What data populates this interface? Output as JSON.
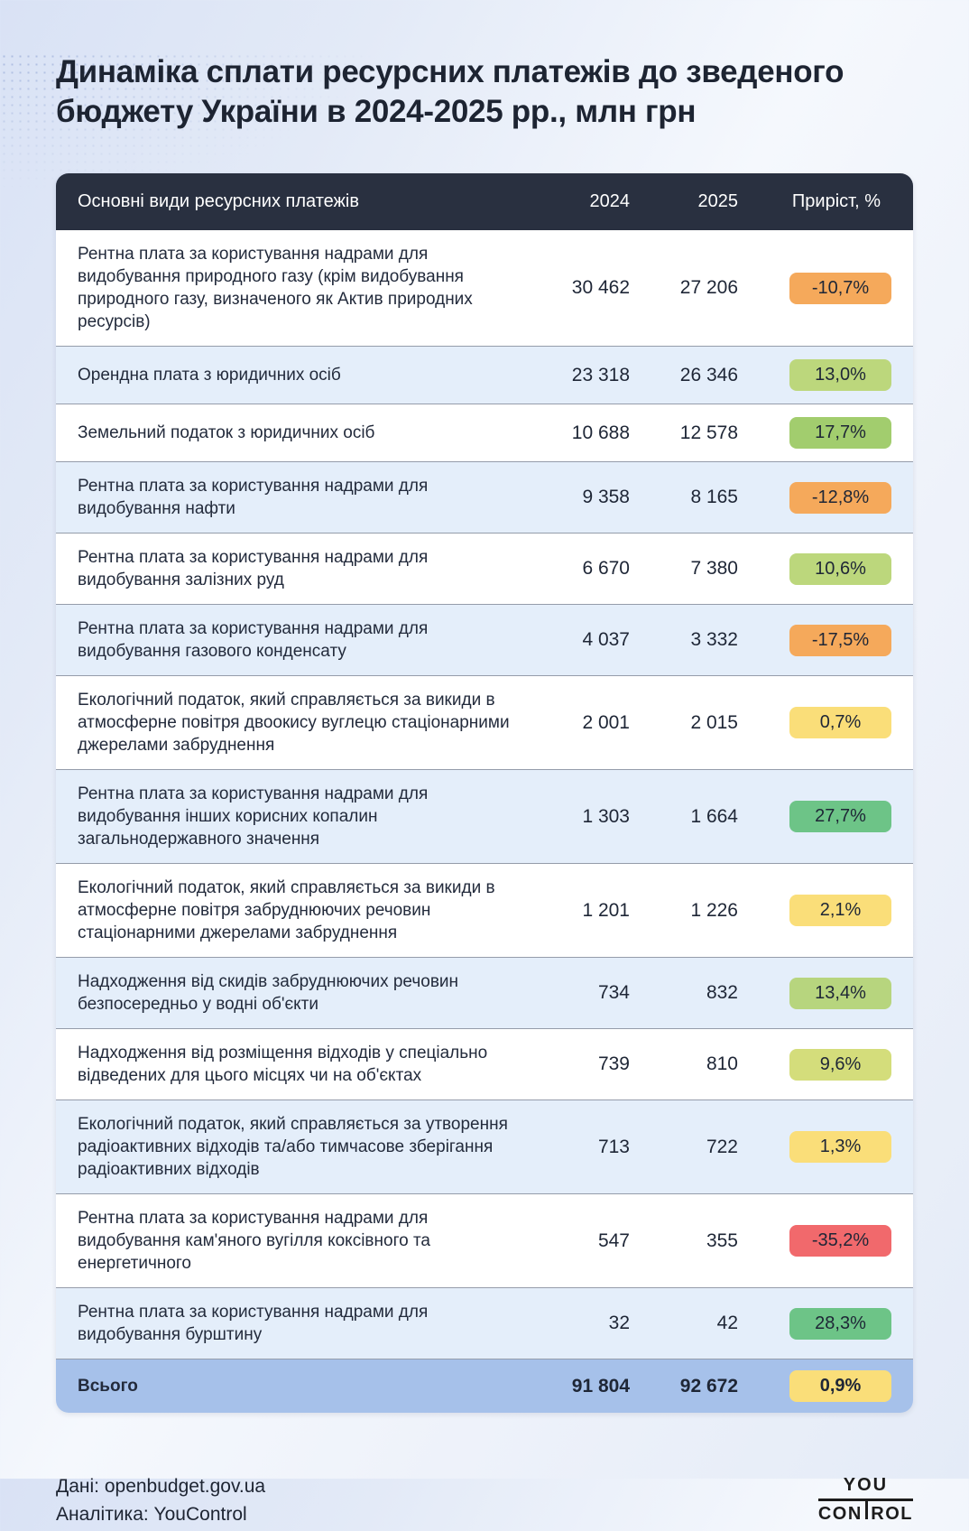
{
  "header": {
    "title": "Динаміка сплати ресурсних платежів до зведеного бюджету України в 2024-2025 рр., млн грн"
  },
  "table": {
    "columns": {
      "label": "Основні види ресурсних платежів",
      "y2024": "2024",
      "y2025": "2025",
      "growth": "Приріст, %"
    },
    "rows": [
      {
        "label": "Рентна плата за користування надрами для видобування природного газу (крім видобування природного газу, визначеного як Актив природних ресурсів)",
        "v2024": "30 462",
        "v2025": "27 206",
        "growth": "-10,7%",
        "badge_color": "#F5A95B"
      },
      {
        "label": "Орендна плата з юридичних осіб",
        "v2024": "23 318",
        "v2025": "26 346",
        "growth": "13,0%",
        "badge_color": "#BCD77C"
      },
      {
        "label": "Земельний податок з юридичних осіб",
        "v2024": "10 688",
        "v2025": "12 578",
        "growth": "17,7%",
        "badge_color": "#A2CD6E"
      },
      {
        "label": "Рентна плата за користування надрами для видобування нафти",
        "v2024": "9 358",
        "v2025": "8 165",
        "growth": "-12,8%",
        "badge_color": "#F5A95B"
      },
      {
        "label": "Рентна плата за користування надрами для видобування залізних руд",
        "v2024": "6 670",
        "v2025": "7 380",
        "growth": "10,6%",
        "badge_color": "#BCD77C"
      },
      {
        "label": "Рентна плата за користування надрами для видобування газового конденсату",
        "v2024": "4 037",
        "v2025": "3 332",
        "growth": "-17,5%",
        "badge_color": "#F5A95B"
      },
      {
        "label": "Екологічний податок, який справляється за викиди в атмосферне повітря двоокису вуглецю стаціонарними джерелами забруднення",
        "v2024": "2 001",
        "v2025": "2 015",
        "growth": "0,7%",
        "badge_color": "#FADE79"
      },
      {
        "label": "Рентна плата за користування надрами для видобування інших корисних копалин загальнодержавного значення",
        "v2024": "1 303",
        "v2025": "1 664",
        "growth": "27,7%",
        "badge_color": "#6DC487"
      },
      {
        "label": "Екологічний податок, який справляється за викиди в атмосферне повітря забруднюючих речовин стаціонарними джерелами забруднення",
        "v2024": "1 201",
        "v2025": "1 226",
        "growth": "2,1%",
        "badge_color": "#FADE79"
      },
      {
        "label": "Надходження від скидів забруднюючих речовин безпосередньо у водні об'єкти",
        "v2024": "734",
        "v2025": "832",
        "growth": "13,4%",
        "badge_color": "#B7D57E"
      },
      {
        "label": "Надходження від розміщення відходів у спеціально відведених для цього місцях чи на об'єктах",
        "v2024": "739",
        "v2025": "810",
        "growth": "9,6%",
        "badge_color": "#D4DD7B"
      },
      {
        "label": "Екологічний податок, який справляється за утворення радіоактивних відходів та/або тимчасове зберігання радіоактивних відходів",
        "v2024": "713",
        "v2025": "722",
        "growth": "1,3%",
        "badge_color": "#FADE79"
      },
      {
        "label": "Рентна плата за користування надрами для видобування кам'яного вугілля коксівного та енергетичного",
        "v2024": "547",
        "v2025": "355",
        "growth": "-35,2%",
        "badge_color": "#F1696C"
      },
      {
        "label": "Рентна плата за користування надрами для видобування бурштину",
        "v2024": "32",
        "v2025": "42",
        "growth": "28,3%",
        "badge_color": "#6DC487"
      }
    ],
    "total": {
      "label": "Всього",
      "v2024": "91 804",
      "v2025": "92 672",
      "growth": "0,9%",
      "badge_color": "#FADE79"
    }
  },
  "footer": {
    "source": "Дані: openbudget.gov.ua",
    "analytics": "Аналітика: YouControl"
  },
  "logo": {
    "you": "YOU",
    "control_left": "CON",
    "control_right": "ROL"
  },
  "colors": {
    "header_bg": "#293040",
    "row_alt_bg": "#E4EEFA",
    "total_row_bg": "#A6C1EA",
    "badge_negative_strong": "#F1696C",
    "badge_negative": "#F5A95B",
    "badge_neutral": "#FADE79",
    "badge_positive": "#BCD77C",
    "badge_positive_strong": "#6DC487"
  },
  "chart_data": {
    "type": "table",
    "title": "Динаміка сплати ресурсних платежів до зведеного бюджету України в 2024-2025 рр., млн грн",
    "unit": "млн грн",
    "columns": [
      "Основні види ресурсних платежів",
      "2024",
      "2025",
      "Приріст, %"
    ],
    "rows": [
      {
        "category": "Рентна плата за користування надрами для видобування природного газу (крім видобування природного газу, визначеного як Актив природних ресурсів)",
        "y2024": 30462,
        "y2025": 27206,
        "growth_pct": -10.7
      },
      {
        "category": "Орендна плата з юридичних осіб",
        "y2024": 23318,
        "y2025": 26346,
        "growth_pct": 13.0
      },
      {
        "category": "Земельний податок з юридичних осіб",
        "y2024": 10688,
        "y2025": 12578,
        "growth_pct": 17.7
      },
      {
        "category": "Рентна плата за користування надрами для видобування нафти",
        "y2024": 9358,
        "y2025": 8165,
        "growth_pct": -12.8
      },
      {
        "category": "Рентна плата за користування надрами для видобування залізних руд",
        "y2024": 6670,
        "y2025": 7380,
        "growth_pct": 10.6
      },
      {
        "category": "Рентна плата за користування надрами для видобування газового конденсату",
        "y2024": 4037,
        "y2025": 3332,
        "growth_pct": -17.5
      },
      {
        "category": "Екологічний податок, який справляється за викиди в атмосферне повітря двоокису вуглецю стаціонарними джерелами забруднення",
        "y2024": 2001,
        "y2025": 2015,
        "growth_pct": 0.7
      },
      {
        "category": "Рентна плата за користування надрами для видобування інших корисних копалин загальнодержавного значення",
        "y2024": 1303,
        "y2025": 1664,
        "growth_pct": 27.7
      },
      {
        "category": "Екологічний податок, який справляється за викиди в атмосферне повітря забруднюючих речовин стаціонарними джерелами забруднення",
        "y2024": 1201,
        "y2025": 1226,
        "growth_pct": 2.1
      },
      {
        "category": "Надходження від скидів забруднюючих речовин безпосередньо у водні об'єкти",
        "y2024": 734,
        "y2025": 832,
        "growth_pct": 13.4
      },
      {
        "category": "Надходження від розміщення відходів у спеціально відведених для цього місцях чи на об'єктах",
        "y2024": 739,
        "y2025": 810,
        "growth_pct": 9.6
      },
      {
        "category": "Екологічний податок, який справляється за утворення радіоактивних відходів та/або тимчасове зберігання радіоактивних відходів",
        "y2024": 713,
        "y2025": 722,
        "growth_pct": 1.3
      },
      {
        "category": "Рентна плата за користування надрами для видобування кам'яного вугілля коксівного та енергетичного",
        "y2024": 547,
        "y2025": 355,
        "growth_pct": -35.2
      },
      {
        "category": "Рентна плата за користування надрами для видобування бурштину",
        "y2024": 32,
        "y2025": 42,
        "growth_pct": 28.3
      }
    ],
    "total": {
      "category": "Всього",
      "y2024": 91804,
      "y2025": 92672,
      "growth_pct": 0.9
    }
  }
}
